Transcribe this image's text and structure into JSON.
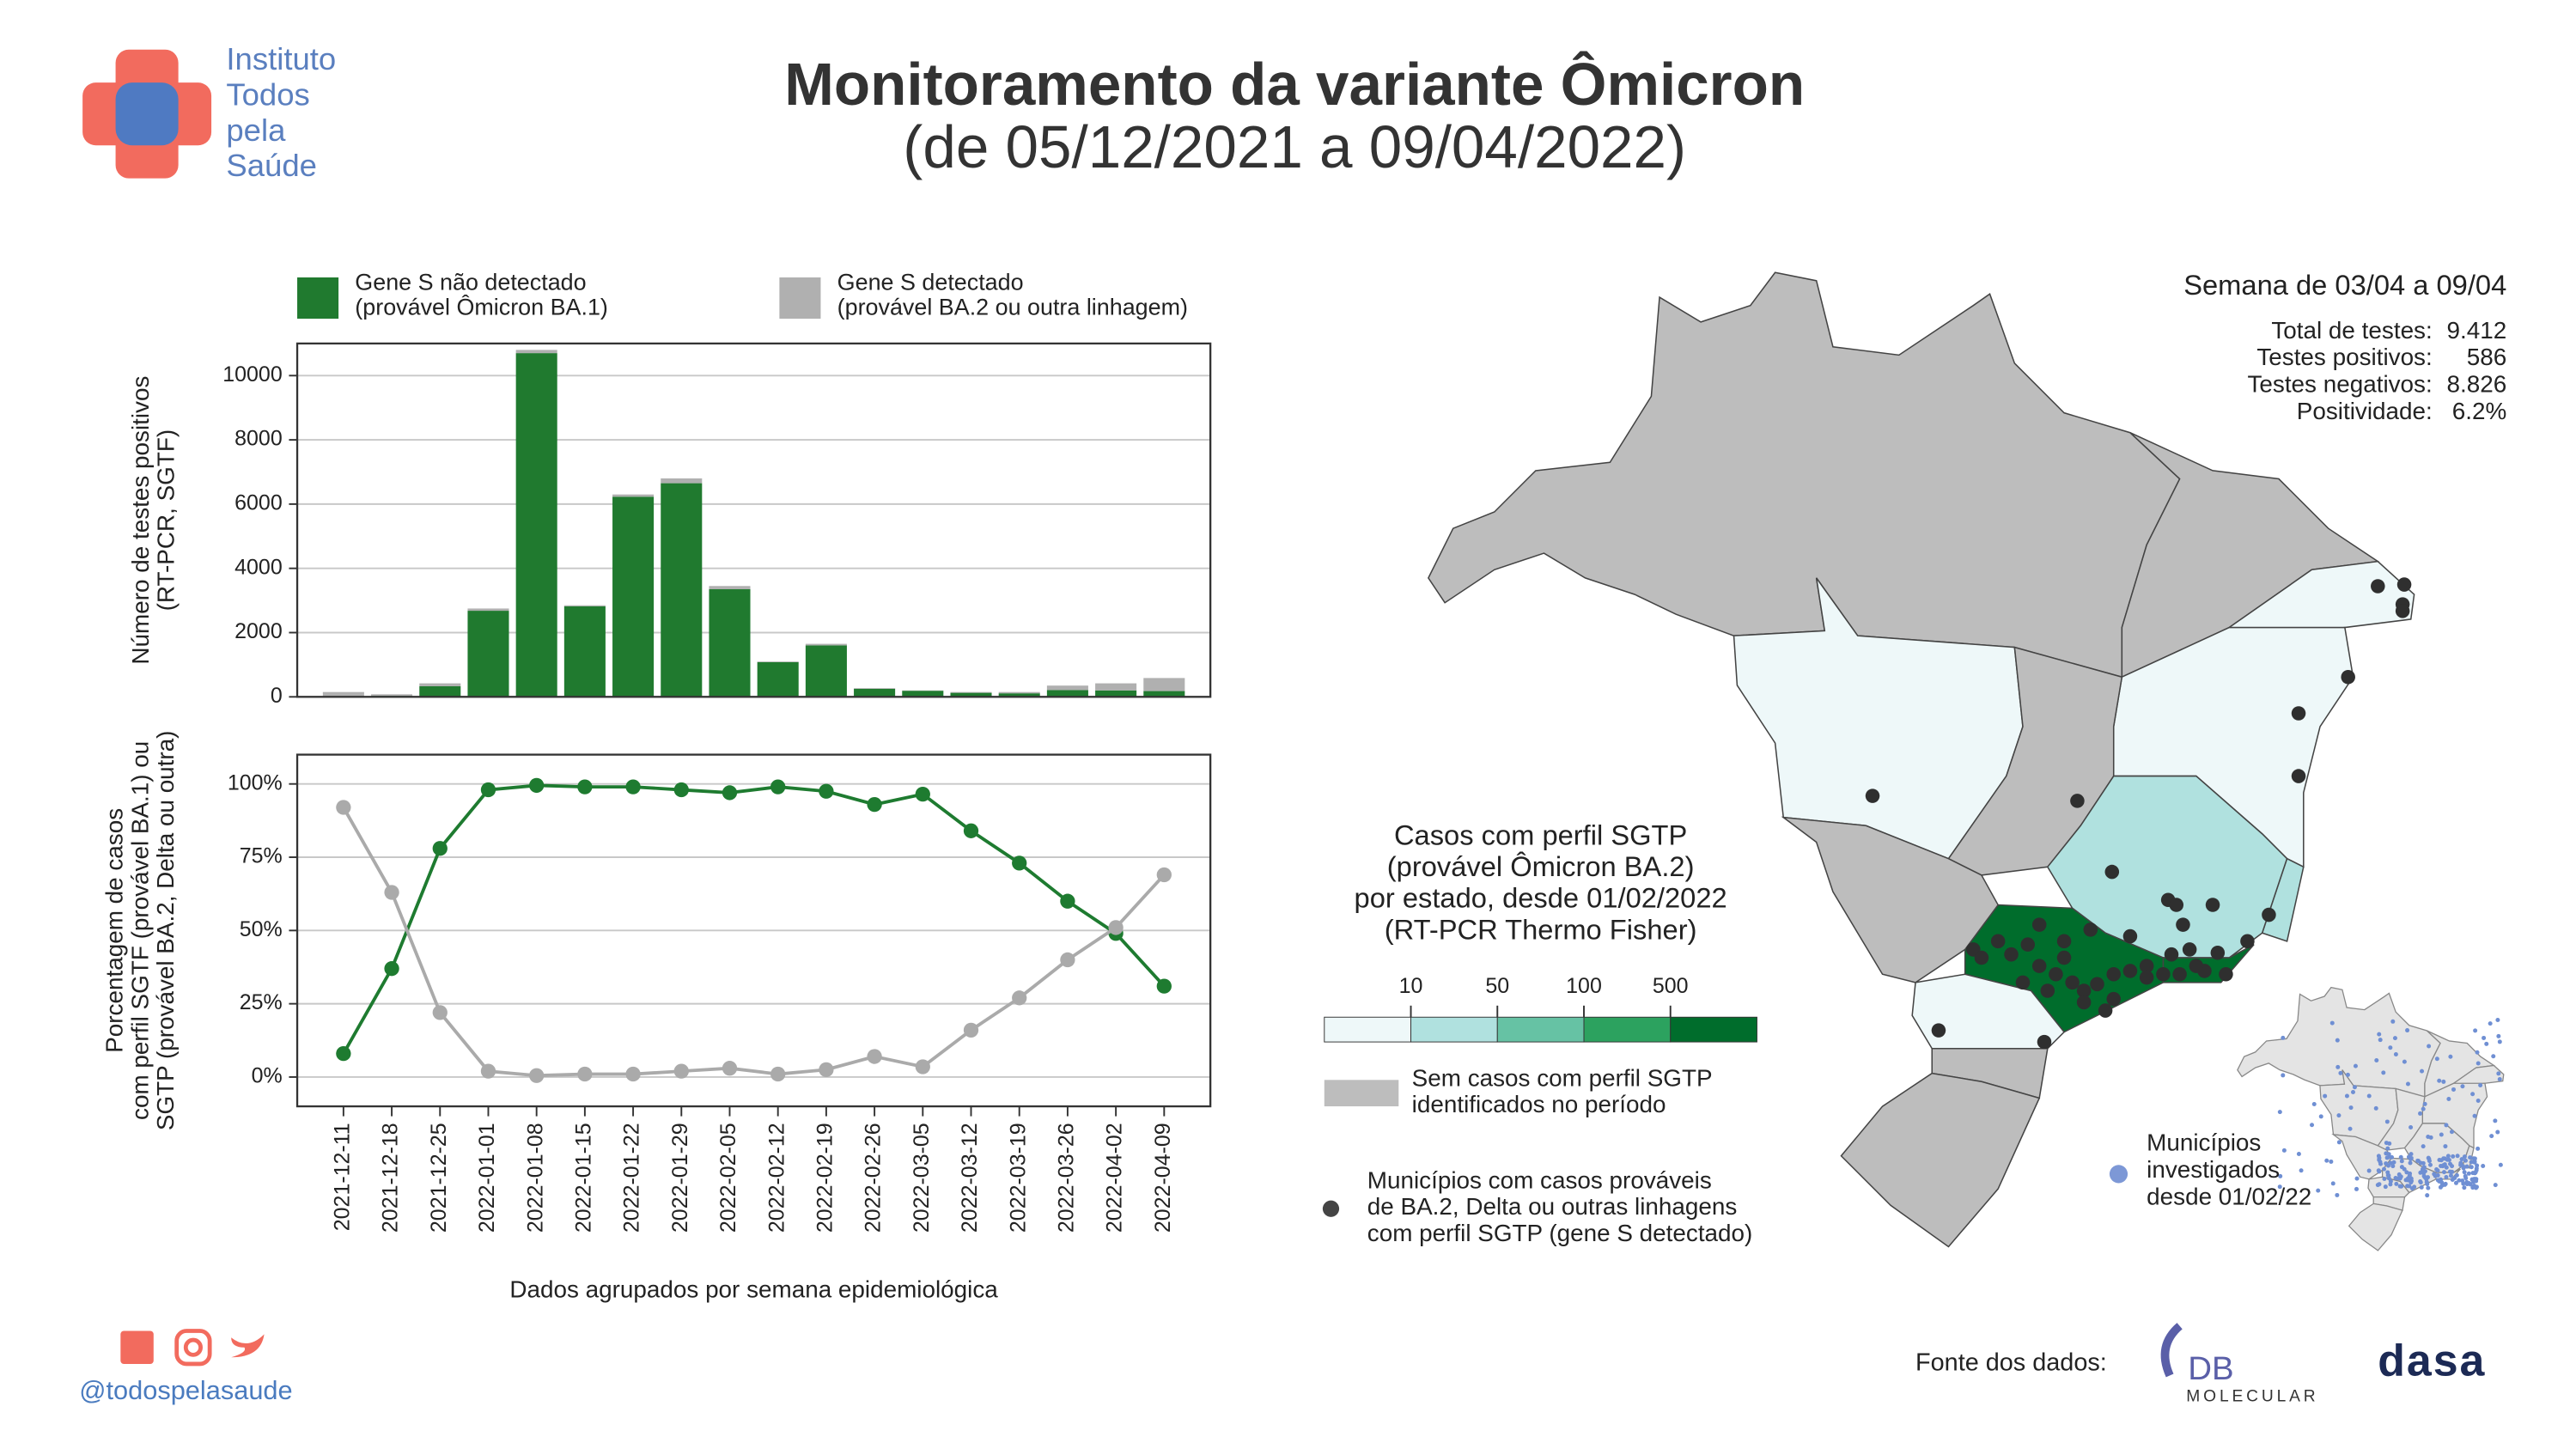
{
  "header": {
    "title": "Monitoramento da variante Ômicron",
    "subtitle": "(de 05/12/2021 a 09/04/2022)",
    "logo": "Instituto\nTodos\npela\nSaúde"
  },
  "chart_data": [
    {
      "type": "bar",
      "stacked": true,
      "ylabel": "Número de testes positivos\n(RT-PCR, SGTF)",
      "series": [
        {
          "name": "Gene S não detectado\n(provável Ômicron BA.1)",
          "color": "#207a2f",
          "values": [
            12,
            30,
            330,
            2680,
            10700,
            2820,
            6230,
            6650,
            3350,
            1080,
            1600,
            250,
            190,
            125,
            110,
            210,
            200,
            180
          ]
        },
        {
          "name": "Gene S detectado\n(provável BA.2 ou outra linhagem)",
          "color": "#b0b0b0",
          "values": [
            138,
            50,
            90,
            70,
            100,
            30,
            70,
            150,
            100,
            20,
            50,
            20,
            10,
            25,
            40,
            140,
            220,
            406
          ]
        }
      ],
      "ylim": [
        0,
        11000
      ],
      "yticks": [
        0,
        2000,
        4000,
        6000,
        8000,
        10000
      ],
      "grid": true
    },
    {
      "type": "line",
      "ylabel": "Porcentagem de casos\ncom perfil SGTF (provável BA.1) ou\nSGTP (provável BA.2, Delta ou outra)",
      "xlabel": "Dados agrupados por semana epidemiológica",
      "categories": [
        "2021-12-11",
        "2021-12-18",
        "2021-12-25",
        "2022-01-01",
        "2022-01-08",
        "2022-01-15",
        "2022-01-22",
        "2022-01-29",
        "2022-02-05",
        "2022-02-12",
        "2022-02-19",
        "2022-02-26",
        "2022-03-05",
        "2022-03-12",
        "2022-03-19",
        "2022-03-26",
        "2022-04-02",
        "2022-04-09"
      ],
      "series": [
        {
          "color": "#1e7b30",
          "values": [
            8,
            37,
            78,
            98,
            99.5,
            99,
            99,
            98,
            97,
            99,
            97.5,
            93,
            96.5,
            84,
            73,
            60,
            49,
            31
          ]
        },
        {
          "color": "#aaaaaa",
          "values": [
            92,
            63,
            22,
            2,
            0.5,
            1,
            1,
            2,
            3,
            1,
            2.5,
            7,
            3.5,
            16,
            27,
            40,
            51,
            69
          ]
        }
      ],
      "ylim": [
        -10,
        110
      ],
      "yticks": [
        {
          "value": 0,
          "label": "0%"
        },
        {
          "value": 25,
          "label": "25%"
        },
        {
          "value": 50,
          "label": "50%"
        },
        {
          "value": 75,
          "label": "75%"
        },
        {
          "value": 100,
          "label": "100%"
        }
      ],
      "grid": true
    }
  ],
  "map": {
    "week": "Semana de 03/04 a 09/04",
    "stats": [
      {
        "label": "Total de testes:",
        "value": "9.412"
      },
      {
        "label": "Testes positivos:",
        "value": "586"
      },
      {
        "label": "Testes negativos:",
        "value": "8.826"
      },
      {
        "label": "Positividade:",
        "value": "6.2%"
      }
    ],
    "legend_title": "Casos com perfil SGTP\n(provável Ômicron BA.2)\npor estado, desde 01/02/2022\n(RT-PCR Thermo Fisher)",
    "scale_ticks": [
      10,
      50,
      100,
      500
    ],
    "scale_colors": [
      "#eef8f9",
      "#b0e1df",
      "#66c2a4",
      "#2ca25f",
      "#006d2c"
    ],
    "no_cases": "Sem casos com perfil SGTP\nidentificados no período",
    "dots_legend": "Municípios com casos prováveis\nde BA.2, Delta ou outras linhagens\ncom perfil SGTP (gene S detectado)",
    "inset_legend": "Municípios\ninvestigados\ndesde 01/02/22"
  },
  "footer": {
    "handle": "@todospelasaude",
    "source": "Fonte dos dados:",
    "logo1": "DB",
    "logo1_sub": "MOLECULAR",
    "logo2": "dasa"
  }
}
